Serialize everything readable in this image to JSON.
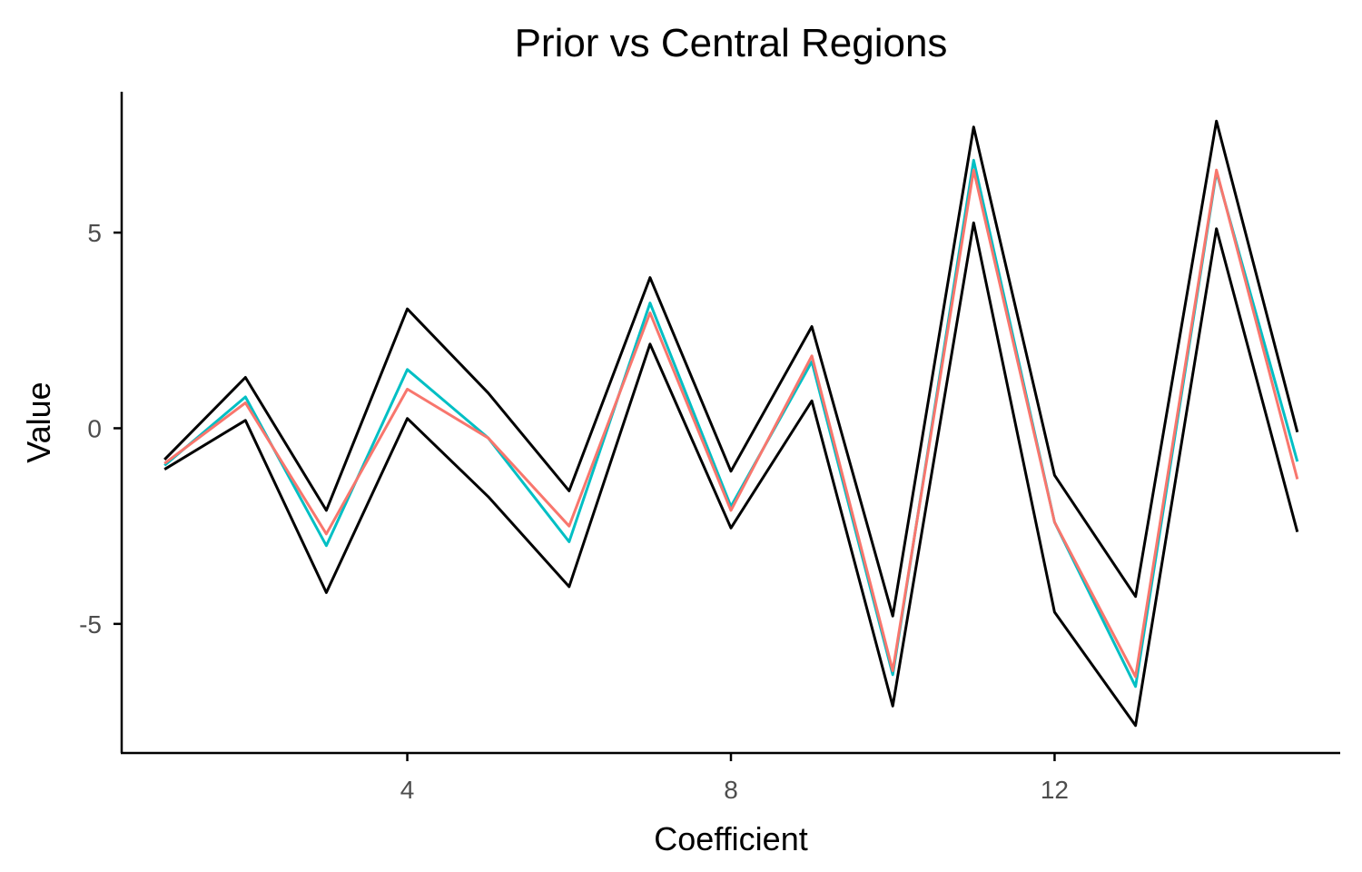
{
  "chart_data": {
    "type": "line",
    "title": "Prior vs Central Regions",
    "xlabel": "Coefficient",
    "ylabel": "Value",
    "xlim": [
      0.47,
      15.53
    ],
    "ylim": [
      -8.3,
      8.6
    ],
    "x_ticks": [
      4,
      8,
      12
    ],
    "y_ticks": [
      -5,
      0,
      5
    ],
    "grid": false,
    "legend": "none",
    "x": [
      1,
      2,
      3,
      4,
      5,
      6,
      7,
      8,
      9,
      10,
      11,
      12,
      13,
      14,
      15
    ],
    "series": [
      {
        "color": "#000000",
        "values": [
          -0.8,
          1.3,
          -2.1,
          3.05,
          0.9,
          -1.6,
          3.85,
          -1.1,
          2.6,
          -4.8,
          7.7,
          -1.2,
          -4.3,
          7.85,
          -0.1
        ]
      },
      {
        "color": "#000000",
        "values": [
          -1.05,
          0.2,
          -4.2,
          0.25,
          -1.75,
          -4.05,
          2.15,
          -2.55,
          0.7,
          -7.1,
          5.25,
          -4.7,
          -7.6,
          5.1,
          -2.65
        ]
      },
      {
        "color": "#00BFC4",
        "values": [
          -0.95,
          0.8,
          -3.0,
          1.5,
          -0.25,
          -2.9,
          3.2,
          -2.0,
          1.7,
          -6.3,
          6.85,
          -2.4,
          -6.6,
          6.55,
          -0.85
        ]
      },
      {
        "color": "#F8766D",
        "values": [
          -0.9,
          0.65,
          -2.7,
          1.0,
          -0.25,
          -2.5,
          2.95,
          -2.1,
          1.85,
          -6.2,
          6.6,
          -2.4,
          -6.35,
          6.6,
          -1.3
        ]
      }
    ]
  }
}
